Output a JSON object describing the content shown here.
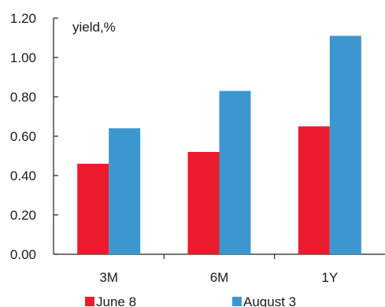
{
  "chart_data": {
    "type": "bar",
    "ylabel": "yield,%",
    "categories": [
      "3M",
      "6M",
      "1Y"
    ],
    "series": [
      {
        "name": "June 8",
        "color": "#ec1c2e",
        "values": [
          0.46,
          0.52,
          0.65
        ]
      },
      {
        "name": "August 3",
        "color": "#3d97cf",
        "values": [
          0.64,
          0.83,
          1.11
        ]
      }
    ],
    "ylim": [
      0,
      1.2
    ],
    "yticks": [
      "0.00",
      "0.20",
      "0.40",
      "0.60",
      "0.80",
      "1.00",
      "1.20"
    ],
    "grid": false,
    "legend_position": "bottom"
  }
}
